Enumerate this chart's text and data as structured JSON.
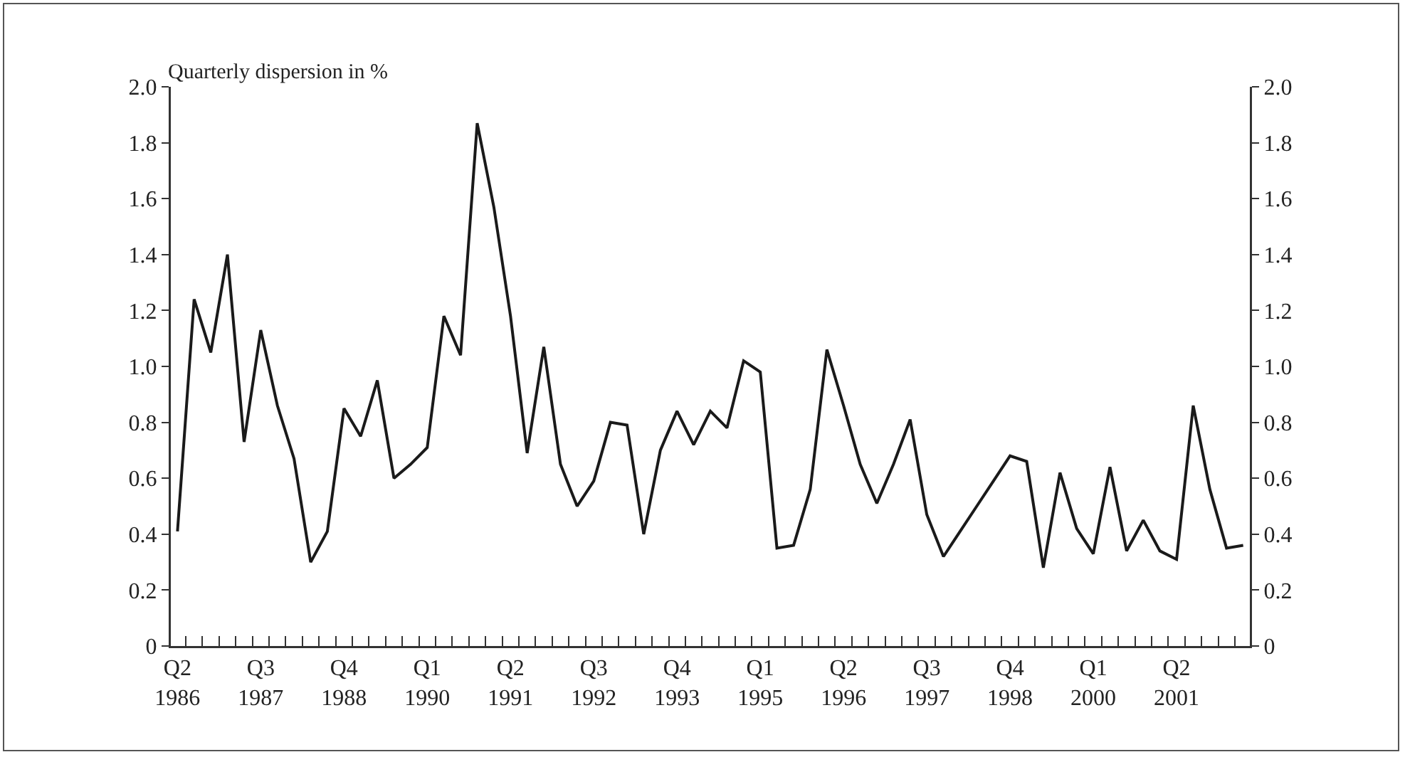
{
  "chart_data": {
    "type": "line",
    "ylabel": "Quarterly dispersion in %",
    "categories": [
      "Q2 1986",
      null,
      null,
      null,
      null,
      "Q3 1987",
      null,
      null,
      null,
      null,
      "Q4 1988",
      null,
      null,
      null,
      null,
      "Q1 1990",
      null,
      null,
      null,
      null,
      "Q2 1991",
      null,
      null,
      null,
      null,
      "Q3 1992",
      null,
      null,
      null,
      null,
      "Q4 1993",
      null,
      null,
      null,
      null,
      "Q1 1995",
      null,
      null,
      null,
      null,
      "Q2 1996",
      null,
      null,
      null,
      null,
      "Q3 1997",
      null,
      null,
      null,
      null,
      "Q4 1998",
      null,
      null,
      null,
      null,
      "Q1 2000",
      null,
      null,
      null,
      null,
      "Q2 2001",
      null,
      null,
      null,
      null
    ],
    "series": [
      {
        "color": "#1a1a1a",
        "values": [
          0.41,
          1.24,
          1.05,
          1.4,
          0.73,
          1.13,
          0.86,
          0.67,
          0.3,
          0.41,
          0.85,
          0.75,
          0.95,
          0.6,
          0.65,
          0.71,
          1.18,
          1.04,
          1.87,
          1.57,
          1.18,
          0.69,
          1.07,
          0.65,
          0.5,
          0.59,
          0.8,
          0.79,
          0.4,
          0.7,
          0.84,
          0.72,
          0.84,
          0.78,
          1.02,
          0.98,
          0.35,
          0.36,
          0.56,
          1.06,
          0.86,
          0.65,
          0.51,
          0.65,
          0.81,
          0.47,
          0.32,
          0.41,
          0.5,
          0.59,
          0.68,
          0.66,
          0.28,
          0.62,
          0.42,
          0.33,
          0.64,
          0.34,
          0.45,
          0.34,
          0.31,
          0.86,
          0.56,
          0.35,
          0.36
        ]
      }
    ],
    "ylim": [
      0,
      2
    ],
    "yticks": [
      0,
      {
        "value": 0.2,
        "label": "0.2"
      },
      {
        "value": 0.4,
        "label": "0.4"
      },
      {
        "value": 0.6,
        "label": "0.6"
      },
      {
        "value": 0.8,
        "label": "0.8"
      },
      {
        "value": 1,
        "label": "1.0"
      },
      {
        "value": 1.2,
        "label": "1.2"
      },
      {
        "value": 1.4,
        "label": "1.4"
      },
      {
        "value": 1.6,
        "label": "1.6"
      },
      {
        "value": 1.8,
        "label": "1.8"
      },
      {
        "value": 2,
        "label": "2.0"
      }
    ],
    "y2lim": [
      0,
      2
    ],
    "y2ticks": [
      0,
      {
        "value": 0.2,
        "label": "0.2"
      },
      {
        "value": 0.4,
        "label": "0.4"
      },
      {
        "value": 0.6,
        "label": "0.6"
      },
      {
        "value": 0.8,
        "label": "0.8"
      },
      {
        "value": 1,
        "label": "1.0"
      },
      {
        "value": 1.2,
        "label": "1.2"
      },
      {
        "value": 1.4,
        "label": "1.4"
      },
      {
        "value": 1.6,
        "label": "1.6"
      },
      {
        "value": 1.8,
        "label": "1.8"
      },
      {
        "value": 2,
        "label": "2.0"
      }
    ],
    "marker": "none",
    "line_style": "solid"
  }
}
